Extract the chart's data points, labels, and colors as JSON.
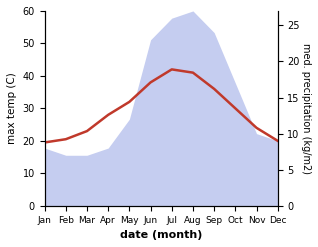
{
  "months": [
    "Jan",
    "Feb",
    "Mar",
    "Apr",
    "May",
    "Jun",
    "Jul",
    "Aug",
    "Sep",
    "Oct",
    "Nov",
    "Dec"
  ],
  "month_positions": [
    0,
    1,
    2,
    3,
    4,
    5,
    6,
    7,
    8,
    9,
    10,
    11
  ],
  "temp_max": [
    19.5,
    20.5,
    23,
    28,
    32,
    38,
    42,
    41,
    36,
    30,
    24,
    20
  ],
  "precip": [
    8,
    7,
    7,
    8,
    12,
    23,
    26,
    27,
    24,
    17,
    10,
    9
  ],
  "temp_color": "#c0392b",
  "precip_fill_color": "#c5cdf0",
  "left_ylim": [
    0,
    60
  ],
  "right_ylim": [
    0,
    27
  ],
  "left_yticks": [
    0,
    10,
    20,
    30,
    40,
    50,
    60
  ],
  "right_yticks": [
    0,
    5,
    10,
    15,
    20,
    25
  ],
  "xlabel": "date (month)",
  "ylabel_left": "max temp (C)",
  "ylabel_right": "med. precipitation (kg/m2)",
  "bg_color": "#ffffff",
  "scale_factor": 2.2222
}
